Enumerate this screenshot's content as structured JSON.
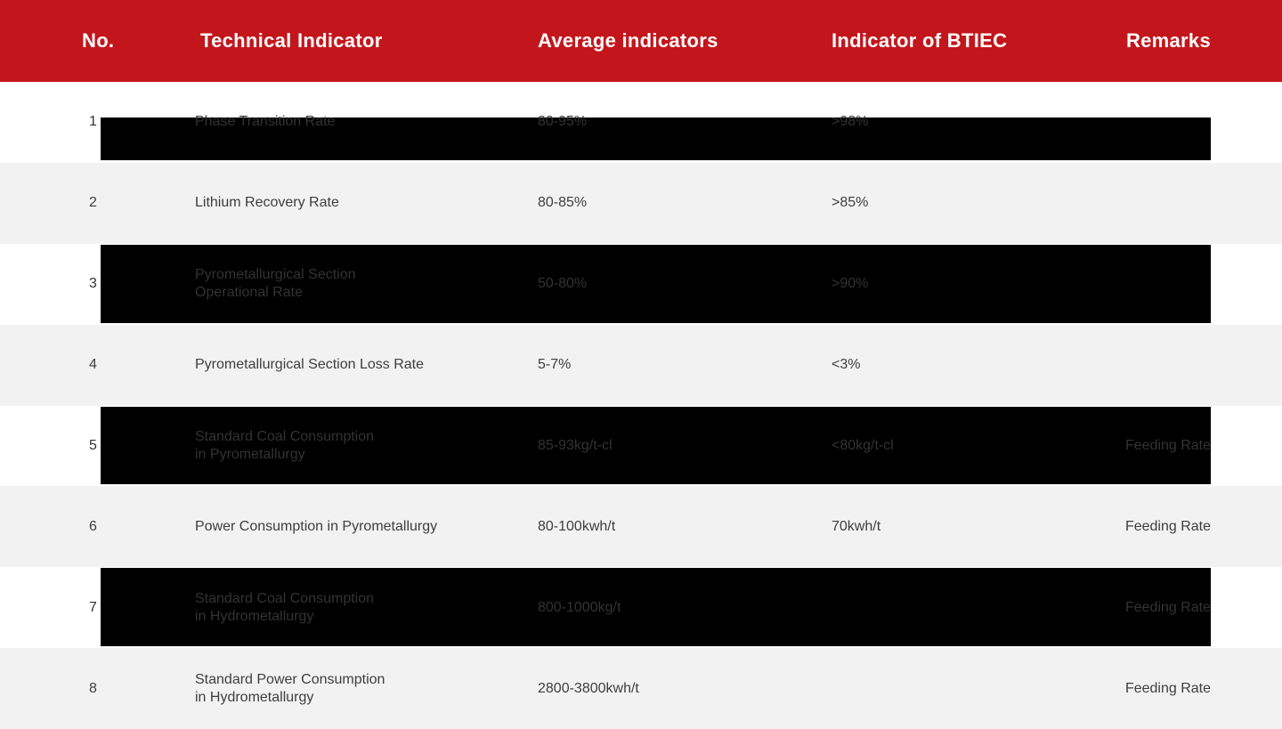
{
  "table": {
    "accent_color": "#c3161c",
    "row_alt_color": "#f2f2f2",
    "highlight_bar_color": "#000000",
    "header": {
      "no": "No.",
      "technical_indicator": "Technical Indicator",
      "average_indicators": "Average indicators",
      "indicator_of_btiec": "Indicator of BTIEC",
      "remarks": "Remarks"
    },
    "rows": [
      {
        "no": "1",
        "technical_indicator": "Phase Transition Rate",
        "average_indicators": "80-95%",
        "indicator_of_btiec": ">98%",
        "remarks": "",
        "highlighted": true
      },
      {
        "no": "2",
        "technical_indicator": "Lithium Recovery Rate",
        "average_indicators": "80-85%",
        "indicator_of_btiec": ">85%",
        "remarks": "",
        "highlighted": false
      },
      {
        "no": "3",
        "technical_indicator": "Pyrometallurgical Section\nOperational Rate",
        "average_indicators": "50-80%",
        "indicator_of_btiec": ">90%",
        "remarks": "",
        "highlighted": true
      },
      {
        "no": "4",
        "technical_indicator": "Pyrometallurgical Section Loss Rate",
        "average_indicators": "5-7%",
        "indicator_of_btiec": "<3%",
        "remarks": "",
        "highlighted": false
      },
      {
        "no": "5",
        "technical_indicator": "Standard Coal Consumption\nin Pyrometallurgy",
        "average_indicators": "85-93kg/t-cl",
        "indicator_of_btiec": "<80kg/t-cl",
        "remarks": "Feeding Rate",
        "highlighted": true
      },
      {
        "no": "6",
        "technical_indicator": "Power Consumption in Pyrometallurgy",
        "average_indicators": "80-100kwh/t",
        "indicator_of_btiec": "70kwh/t",
        "remarks": "Feeding Rate",
        "highlighted": false
      },
      {
        "no": "7",
        "technical_indicator": "Standard Coal Consumption\nin Hydrometallurgy",
        "average_indicators": "800-1000kg/t",
        "indicator_of_btiec": "",
        "remarks": "Feeding Rate",
        "highlighted": true
      },
      {
        "no": "8",
        "technical_indicator": "Standard Power Consumption\nin Hydrometallurgy",
        "average_indicators": "2800-3800kwh/t",
        "indicator_of_btiec": "",
        "remarks": "Feeding Rate",
        "highlighted": false
      }
    ]
  }
}
